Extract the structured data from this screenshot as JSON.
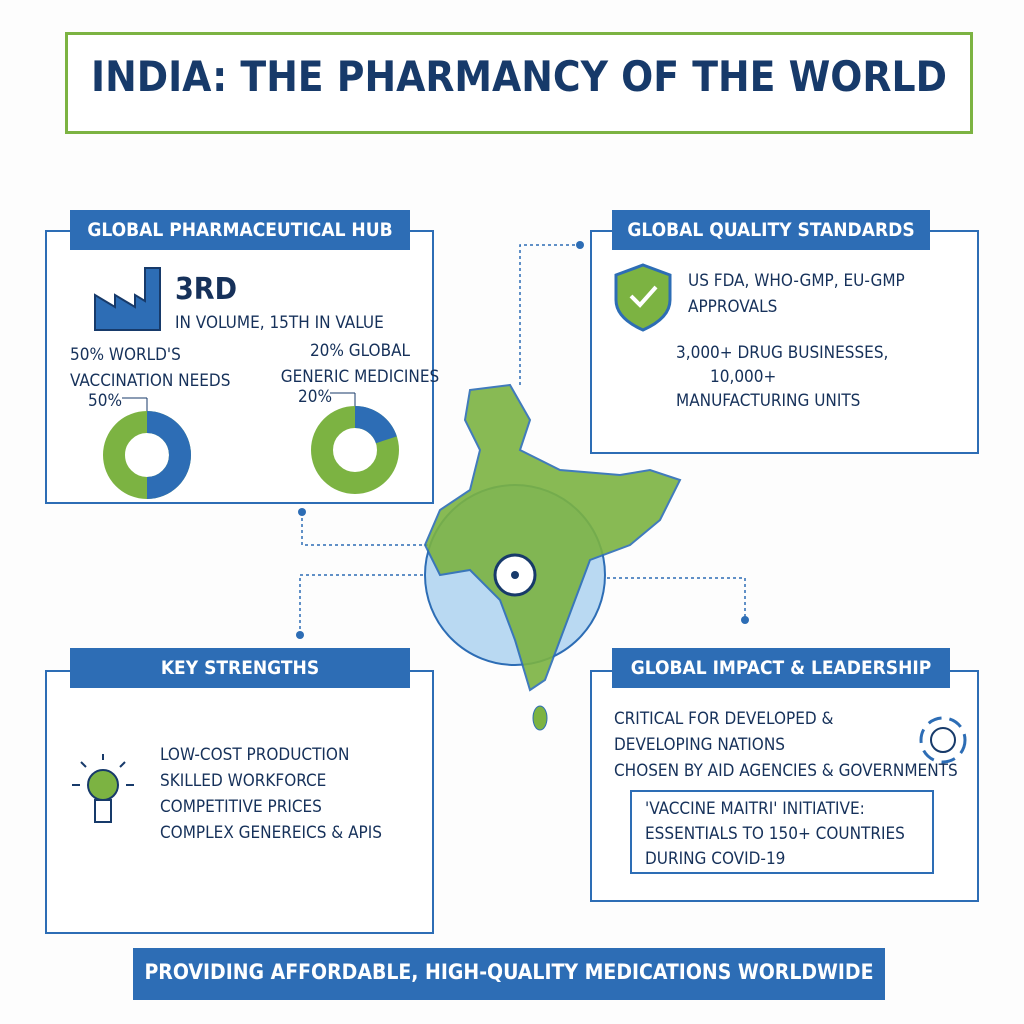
{
  "header": {
    "title": "INDIA: THE PHARMANCY OF THE WORLD"
  },
  "hub": {
    "title": "GLOBAL PHARMACEUTICAL HUB",
    "rank": "3RD",
    "rank_detail": "IN VOLUME, 15TH IN VALUE",
    "donuts": [
      {
        "title": "50% WORLD'S VACCINATION NEEDS",
        "values": [
          50
        ],
        "value_labels": [
          "50%"
        ]
      },
      {
        "title": "20% GLOBAL GENERIC MEDICINES",
        "values": [
          20
        ],
        "value_labels": [
          "20%"
        ]
      }
    ]
  },
  "quality": {
    "title": "GLOBAL QUALITY STANDARDS",
    "approvals": "US FDA, WHO-GMP, EU-GMP APPROVALS",
    "businesses": "3,000+ DRUG BUSINESSES,",
    "units": "10,000+",
    "units_detail": "MANUFACTURING UNITS"
  },
  "strengths": {
    "title": "KEY STRENGTHS",
    "items": [
      "LOW-COST PRODUCTION",
      "SKILLED WORKFORCE",
      "COMPETITIVE PRICES",
      "COMPLEX GENEREICS & APIS"
    ]
  },
  "impact": {
    "title": "GLOBAL IMPACT & LEADERSHIP",
    "lines": [
      "CRITICAL FOR DEVELOPED &",
      "DEVELOPING NATIONS",
      "CHOSEN BY AID AGENCIES & GOVERNMENTS"
    ],
    "initiative": [
      "'VACCINE MAITRI' INITIATIVE:",
      "ESSENTIALS TO 150+ COUNTRIES",
      "DURING COVID-19"
    ]
  },
  "footer": {
    "text": "PROVIDING AFFORDABLE, HIGH-QUALITY MEDICATIONS WORLDWIDE"
  }
}
